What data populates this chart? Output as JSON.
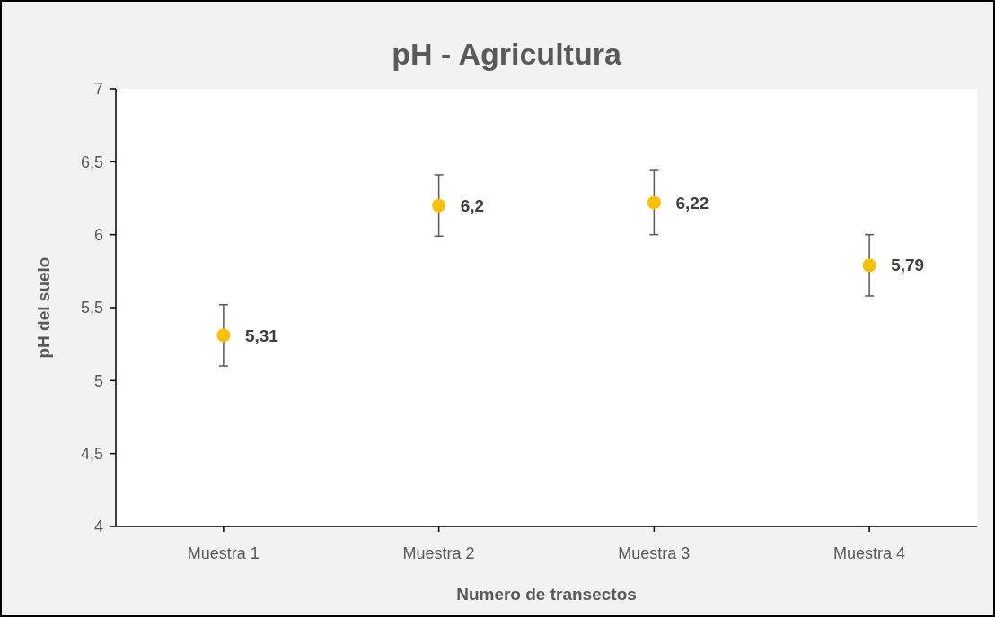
{
  "chart_data": {
    "type": "scatter",
    "title": "pH - Agricultura",
    "xlabel": "Numero de transectos",
    "ylabel": "pH del suelo",
    "categories": [
      "Muestra 1",
      "Muestra 2",
      "Muestra 3",
      "Muestra 4"
    ],
    "series": [
      {
        "color": "#ffc000",
        "values": [
          5.31,
          6.2,
          6.22,
          5.79
        ],
        "errors": [
          0.21,
          0.21,
          0.22,
          0.21
        ],
        "value_labels": [
          "5,31",
          "6,2",
          "6,22",
          "5,79"
        ]
      }
    ],
    "ylim": [
      4,
      7
    ],
    "yticks": [
      4,
      {
        "value": 4.5,
        "label": "4,5"
      },
      5,
      {
        "value": 5.5,
        "label": "5,5"
      },
      6,
      {
        "value": 6.5,
        "label": "6,5"
      },
      7
    ],
    "marker": "circle",
    "grid": false
  }
}
